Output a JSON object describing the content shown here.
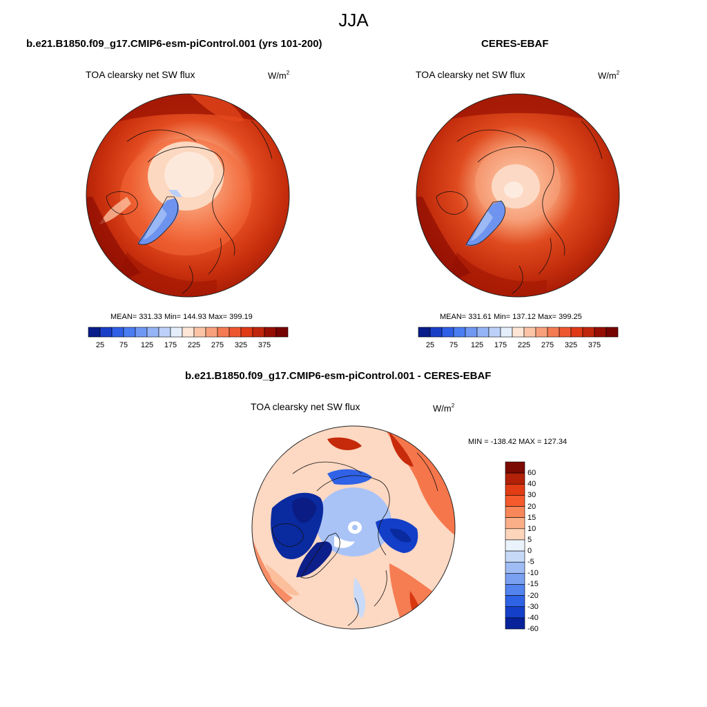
{
  "page": {
    "title": "JJA"
  },
  "panels": {
    "model": {
      "title": "b.e21.B1850.f09_g17.CMIP6-esm-piControl.001 (yrs 101-200)",
      "variable": "TOA clearsky net SW flux",
      "units": "W/m",
      "units_sup": "2",
      "stats": "MEAN= 331.33  Min= 144.93  Max= 399.19"
    },
    "obs": {
      "title": "CERES-EBAF",
      "variable": "TOA clearsky net SW flux",
      "units": "W/m",
      "units_sup": "2",
      "stats": "MEAN= 331.61  Min= 137.12  Max= 399.25"
    },
    "diff": {
      "title": "b.e21.B1850.f09_g17.CMIP6-esm-piControl.001 - CERES-EBAF",
      "variable": "TOA clearsky net SW flux",
      "units": "W/m",
      "units_sup": "2",
      "stats": "MIN = -138.42 MAX = 127.34"
    }
  },
  "colorbars": {
    "field": {
      "colors": [
        "#081d8a",
        "#1a3fc7",
        "#2f5fe6",
        "#4a7df0",
        "#6e98f2",
        "#95b4f5",
        "#bcd0f8",
        "#e4eefb",
        "#fde6d6",
        "#fbc4a6",
        "#f8a07c",
        "#f47a52",
        "#ee5630",
        "#df3a15",
        "#c0260b",
        "#960e02",
        "#750400"
      ],
      "tick_labels": [
        "25",
        "75",
        "125",
        "175",
        "225",
        "275",
        "325",
        "375"
      ]
    },
    "diff": {
      "colors": [
        "#7b0a02",
        "#b22108",
        "#e13c14",
        "#f45a2c",
        "#f8875a",
        "#fbaf88",
        "#fdd5bb",
        "#eaf2fc",
        "#c6daf8",
        "#9fbdf4",
        "#7aa0f1",
        "#5283ee",
        "#2f63e6",
        "#1440c9",
        "#08229a"
      ],
      "tick_labels": [
        "60",
        "40",
        "30",
        "20",
        "15",
        "10",
        "5",
        "0",
        "-5",
        "-10",
        "-15",
        "-20",
        "-30",
        "-40",
        "-60"
      ]
    }
  }
}
